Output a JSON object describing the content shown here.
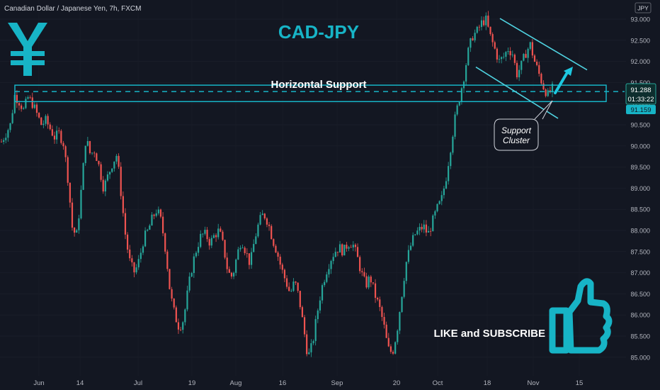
{
  "header": {
    "symbol_line": "Canadian Dollar / Japanese Yen, 7h, FXCM"
  },
  "title": "CAD-JPY",
  "currency_badge": "JPY",
  "yen_icon_color": "#17b4c6",
  "accent_color": "#17b4c6",
  "zone_label": "Horizontal Support",
  "callout": {
    "line1": "Support",
    "line2": "Cluster"
  },
  "cta": "LIKE and SUBSCRIBE",
  "icons": [
    "yen-icon",
    "thumbs-up-icon",
    "arrow-up-icon"
  ],
  "price_labels": {
    "last": "91.288",
    "countdown": "01:33:22",
    "level": "91.159"
  },
  "colors": {
    "up": "#26a69a",
    "down": "#ef5350",
    "background": "#131722",
    "grid": "#1e222d",
    "axis_text": "#b2b5be"
  },
  "chart_data": {
    "type": "candlestick",
    "ylim": [
      84.75,
      93.3
    ],
    "y_ticks": [
      "93.000",
      "92.500",
      "92.000",
      "91.500",
      "91.000",
      "90.500",
      "90.000",
      "89.500",
      "89.000",
      "88.500",
      "88.000",
      "87.500",
      "87.000",
      "86.500",
      "86.000",
      "85.500",
      "85.000"
    ],
    "x_ticks": [
      "Jun",
      "14",
      "Jul",
      "19",
      "Aug",
      "16",
      "Sep",
      "20",
      "Oct",
      "18",
      "Nov",
      "15"
    ],
    "support_zone": [
      91.15,
      91.27
    ],
    "support_line": 91.22,
    "channel_upper": [
      [
        91.95,
        93.05
      ],
      [
        92.95,
        91.9
      ]
    ],
    "channel_lower": [
      [
        91.95,
        91.9
      ],
      [
        92.95,
        90.72
      ]
    ],
    "close_path": [
      90.1,
      90.3,
      90.5,
      91.2,
      91.05,
      90.85,
      91.15,
      91.0,
      90.75,
      90.5,
      90.6,
      90.4,
      90.2,
      90.3,
      90.05,
      89.2,
      88.0,
      87.9,
      89.0,
      90.2,
      89.8,
      89.9,
      89.5,
      89.0,
      89.3,
      89.6,
      89.8,
      88.8,
      87.8,
      87.2,
      87.0,
      87.3,
      87.8,
      88.0,
      88.3,
      88.5,
      88.2,
      87.5,
      86.5,
      86.0,
      85.7,
      85.9,
      86.6,
      87.2,
      87.6,
      87.9,
      87.9,
      87.7,
      87.9,
      88.0,
      87.6,
      87.0,
      86.9,
      87.4,
      87.8,
      87.5,
      87.2,
      87.8,
      88.2,
      88.4,
      88.2,
      87.8,
      87.5,
      87.1,
      86.8,
      86.5,
      86.8,
      86.4,
      85.7,
      85.0,
      85.3,
      86.0,
      86.6,
      87.0,
      87.3,
      87.5,
      87.6,
      87.5,
      87.7,
      87.7,
      87.4,
      87.0,
      86.7,
      86.9,
      86.5,
      86.2,
      85.8,
      85.2,
      85.1,
      85.6,
      86.4,
      87.2,
      87.6,
      87.9,
      88.0,
      88.1,
      87.9,
      88.2,
      88.5,
      88.7,
      89.2,
      89.9,
      90.6,
      91.1,
      91.6,
      92.2,
      92.6,
      92.7,
      92.9,
      93.0,
      92.6,
      92.3,
      92.0,
      92.1,
      92.3,
      92.2,
      91.7,
      91.9,
      92.2,
      92.4,
      92.0,
      91.7,
      91.4,
      91.2,
      91.35
    ]
  }
}
